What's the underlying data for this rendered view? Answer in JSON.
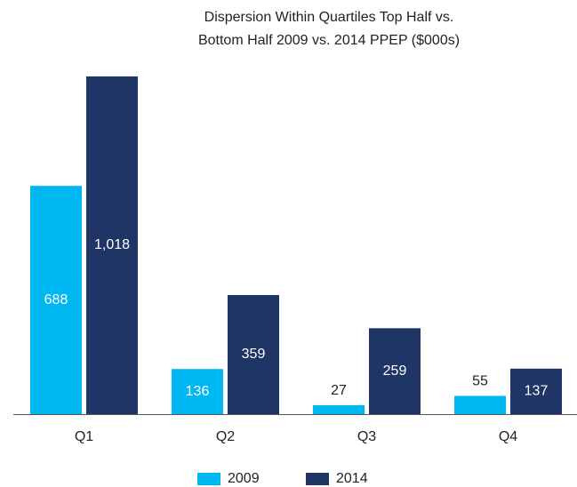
{
  "chart_data": {
    "type": "bar",
    "title": [
      "Dispersion Within Quartiles Top Half vs.",
      "Bottom Half 2009 vs. 2014 PPEP ($000s)"
    ],
    "categories": [
      "Q1",
      "Q2",
      "Q3",
      "Q4"
    ],
    "series": [
      {
        "name": "2009",
        "color": "#00b8f1",
        "values": [
          688,
          136,
          27,
          55
        ]
      },
      {
        "name": "2014",
        "color": "#1f3566",
        "values": [
          1018,
          359,
          259,
          137
        ],
        "value_labels": [
          "1,018",
          "359",
          "259",
          "137"
        ]
      }
    ],
    "legend": "bottom"
  }
}
